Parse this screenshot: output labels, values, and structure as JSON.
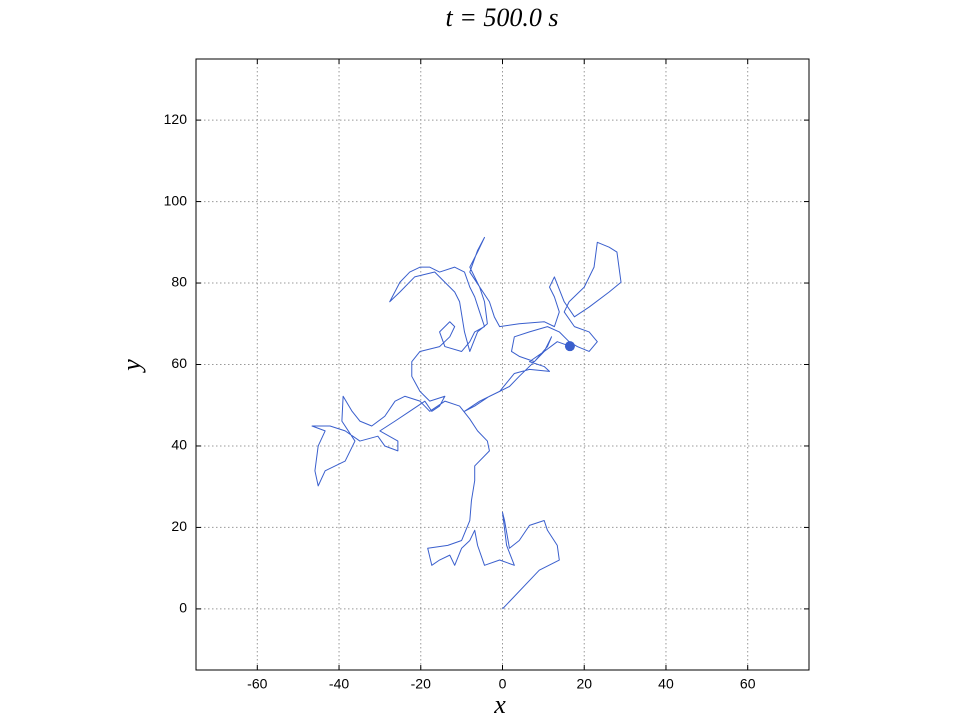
{
  "chart_data": {
    "type": "line",
    "title": "t = 500.0 s",
    "xlabel": "x",
    "ylabel": "y",
    "xlim": [
      -75,
      75
    ],
    "ylim": [
      -15,
      135
    ],
    "xticks": [
      -60,
      -40,
      -20,
      0,
      20,
      40,
      60
    ],
    "yticks": [
      0,
      20,
      40,
      60,
      80,
      100,
      120
    ],
    "grid": true,
    "end_marker": true,
    "series": [
      {
        "color": "#3a5fcd",
        "x": [
          0,
          9.0,
          13.9,
          13.4,
          11.0,
          10.2,
          6.6,
          4.1,
          1.7,
          0.5,
          0,
          1.0,
          2.9,
          -0.7,
          -4.4,
          -6.1,
          -6.8,
          -8.0,
          -10.0,
          -11.7,
          -12.9,
          -15.4,
          -17.3,
          -18.3,
          -13.4,
          -10.0,
          -8.0,
          -7.6,
          -6.8,
          -6.8,
          -3.2,
          -3.7,
          -6.1,
          -8.0,
          -10.5,
          -14.1,
          -17.8,
          -20.2,
          -23.9,
          -26.3,
          -28.8,
          -32.0,
          -34.9,
          -36.8,
          -39.0,
          -39.3,
          -36.1,
          -38.5,
          -43.4,
          -45.1,
          -45.9,
          -45.1,
          -43.4,
          -46.6,
          -42.2,
          -38.5,
          -34.9,
          -30.5,
          -28.8,
          -25.6,
          -25.6,
          -30.0,
          -26.3,
          -22.7,
          -19.0,
          -17.3,
          -15.4,
          -14.1,
          -17.8,
          -20.2,
          -22.2,
          -22.2,
          -20.2,
          -15.4,
          -12.9,
          -11.7,
          -12.9,
          -15.4,
          -14.1,
          -10.0,
          -8.0,
          -6.8,
          -4.4,
          -5.6,
          -6.8,
          -8.0,
          -9.3,
          -11.7,
          -15.4,
          -17.8,
          -20.2,
          -22.7,
          -25.1,
          -27.6,
          -25.1,
          -21.5,
          -16.6,
          -14.1,
          -11.7,
          -10.5,
          -9.3,
          -8.0,
          -6.1,
          -3.7,
          -4.4,
          -5.6,
          -8.0,
          -6.1,
          -4.4,
          -6.1,
          -8.0,
          -3.2,
          -2.0,
          -0.7,
          4.1,
          10.2,
          12.7,
          13.9,
          12.7,
          11.5,
          12.7,
          15.1,
          17.6,
          21.2,
          26.1,
          29.0,
          28.0,
          26.1,
          23.2,
          22.4,
          20.0,
          16.3,
          15.1,
          17.6,
          21.2,
          23.2,
          21.2,
          18.3,
          16.3,
          13.9,
          11.0,
          6.6,
          2.9,
          2.2,
          4.1,
          7.8,
          11.0,
          12.0,
          10.2,
          7.8,
          4.1,
          1.7,
          -0.7,
          -3.2,
          -6.8,
          -9.3,
          -5.6,
          -0.7,
          2.9,
          6.6,
          11.5,
          10.2,
          6.6,
          10.2,
          13.4,
          16.5
        ],
        "values": [
          0,
          9.5,
          12.0,
          15.6,
          19.3,
          21.7,
          20.5,
          16.8,
          14.9,
          21.7,
          23.7,
          15.6,
          10.7,
          12.0,
          10.7,
          15.6,
          19.3,
          16.8,
          14.9,
          10.7,
          13.2,
          12.0,
          10.7,
          14.9,
          15.6,
          16.8,
          21.7,
          26.6,
          31.5,
          35.1,
          38.8,
          41.2,
          43.7,
          46.6,
          49.8,
          51.0,
          48.5,
          51.0,
          52.2,
          51.0,
          47.3,
          44.9,
          46.1,
          48.5,
          52.2,
          46.1,
          41.2,
          36.3,
          33.9,
          30.2,
          33.9,
          40.0,
          43.7,
          44.9,
          44.9,
          43.7,
          41.2,
          42.4,
          40.0,
          38.8,
          41.2,
          43.7,
          46.1,
          48.5,
          51.0,
          48.5,
          49.8,
          52.2,
          51.0,
          53.4,
          57.1,
          60.7,
          63.2,
          64.4,
          66.8,
          69.3,
          70.5,
          68.0,
          64.4,
          63.2,
          65.6,
          68.0,
          69.3,
          72.9,
          76.6,
          79.0,
          82.7,
          83.9,
          82.7,
          83.9,
          83.9,
          82.7,
          80.2,
          75.4,
          77.8,
          81.5,
          82.7,
          80.2,
          77.8,
          75.4,
          68.0,
          63.2,
          68.0,
          70.0,
          75.4,
          79.0,
          83.9,
          87.6,
          91.2,
          88.0,
          82.7,
          75.4,
          71.7,
          69.3,
          70.0,
          70.5,
          69.3,
          72.9,
          76.6,
          79.0,
          81.5,
          75.4,
          71.7,
          74.1,
          77.8,
          80.2,
          87.6,
          88.8,
          90.0,
          83.9,
          79.0,
          75.4,
          72.9,
          69.3,
          68.0,
          65.6,
          63.2,
          64.4,
          65.6,
          68.0,
          69.3,
          68.0,
          66.8,
          63.2,
          62.0,
          60.7,
          64.4,
          66.8,
          63.2,
          60.7,
          57.1,
          54.6,
          53.4,
          52.2,
          49.8,
          48.5,
          51.0,
          53.4,
          57.8,
          58.8,
          58.3,
          59.5,
          60.7,
          63.2,
          65.6,
          64.5
        ]
      }
    ]
  }
}
